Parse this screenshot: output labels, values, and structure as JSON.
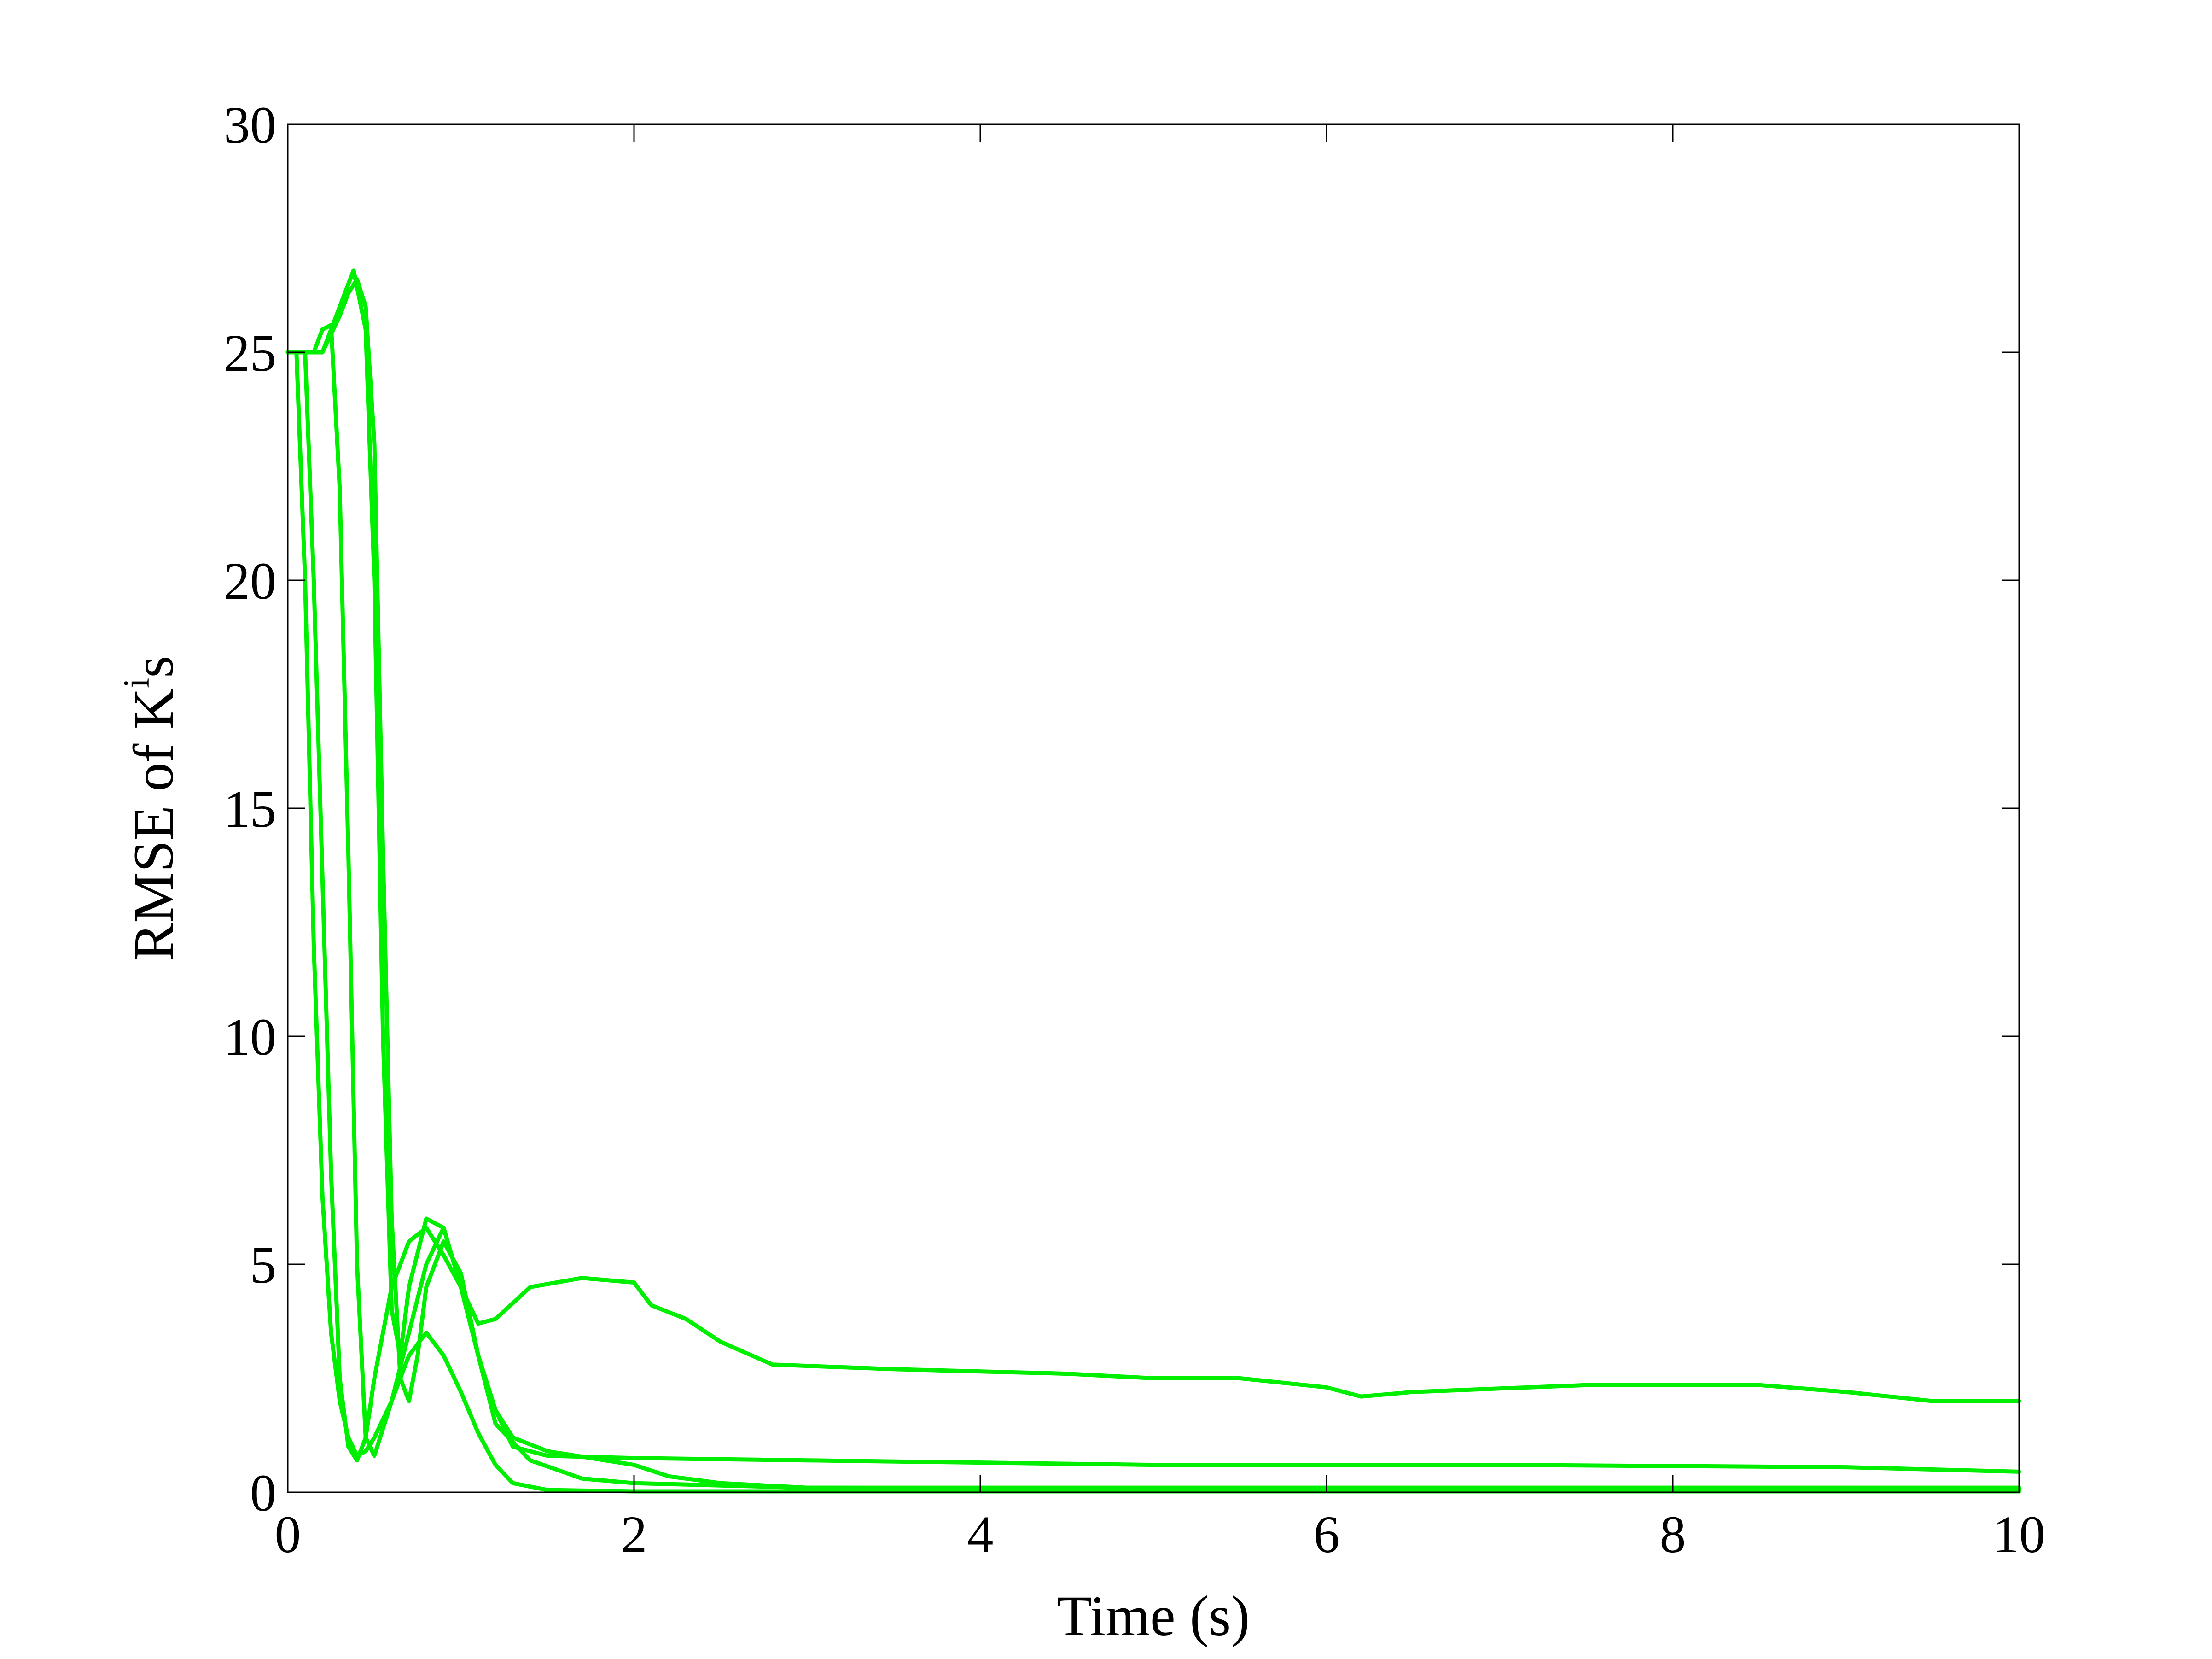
{
  "chart_data": {
    "type": "line",
    "title": "",
    "xlabel": "Time (s)",
    "ylabel": "RMSE of K",
    "ylabel_superscript": "i",
    "ylabel_suffix": "s",
    "xlim": [
      0,
      10
    ],
    "ylim": [
      0,
      30
    ],
    "xticks": [
      "0",
      "2",
      "4",
      "6",
      "8",
      "10"
    ],
    "yticks": [
      "0",
      "5",
      "10",
      "15",
      "20",
      "25",
      "30"
    ],
    "grid": false,
    "legend": "none",
    "color": "#00ee00",
    "series": [
      {
        "x": [
          0,
          0.1,
          0.15,
          0.25,
          0.3,
          0.35,
          0.4,
          0.45,
          0.5,
          0.55,
          0.6,
          0.7,
          0.8,
          0.9,
          1.0,
          1.1,
          1.2,
          1.4,
          1.7,
          2.0,
          2.1,
          2.3,
          2.5,
          2.8,
          3.5,
          4.5,
          5.0,
          5.5,
          6.0,
          6.2,
          6.5,
          7.5,
          8.5,
          9.0,
          9.5,
          10.0
        ],
        "y": [
          25,
          25,
          20,
          7,
          2.5,
          1.0,
          0.7,
          1.2,
          2.5,
          3.5,
          4.5,
          5.5,
          5.8,
          5.2,
          4.5,
          3.7,
          3.8,
          4.5,
          4.7,
          4.6,
          4.1,
          3.8,
          3.3,
          2.8,
          2.7,
          2.6,
          2.5,
          2.5,
          2.3,
          2.1,
          2.2,
          2.35,
          2.35,
          2.2,
          2.0,
          2.0
        ]
      },
      {
        "x": [
          0,
          0.15,
          0.2,
          0.25,
          0.3,
          0.35,
          0.4,
          0.45,
          0.5,
          0.6,
          0.7,
          0.8,
          0.9,
          1.0,
          1.1,
          1.2,
          1.3,
          1.5,
          2.0,
          3.0,
          5.0,
          7.0,
          9.0,
          10.0
        ],
        "y": [
          25,
          25,
          25.5,
          25.6,
          22,
          14,
          5,
          1.2,
          0.8,
          2.0,
          3.5,
          5.0,
          5.8,
          4.5,
          3.0,
          1.8,
          1.0,
          0.8,
          0.75,
          0.7,
          0.6,
          0.6,
          0.55,
          0.45
        ]
      },
      {
        "x": [
          0,
          0.2,
          0.3,
          0.35,
          0.38,
          0.45,
          0.5,
          0.55,
          0.6,
          0.65,
          0.7,
          0.8,
          0.9,
          1.0,
          1.1,
          1.2,
          1.3,
          1.5,
          2.0,
          2.2,
          2.5,
          3.0,
          5.0,
          7.0,
          10.0
        ],
        "y": [
          25,
          25,
          26.0,
          26.5,
          26.8,
          25.5,
          20,
          10,
          4,
          3.0,
          4.5,
          6.0,
          5.8,
          4.5,
          3.0,
          1.8,
          1.2,
          0.9,
          0.6,
          0.35,
          0.2,
          0.1,
          0.1,
          0.1,
          0.1
        ]
      },
      {
        "x": [
          0,
          0.2,
          0.3,
          0.35,
          0.4,
          0.45,
          0.5,
          0.55,
          0.6,
          0.65,
          0.7,
          0.75,
          0.8,
          0.9,
          1.0,
          1.1,
          1.2,
          1.4,
          1.7,
          2.0,
          2.5,
          3.0,
          5.0,
          10.0
        ],
        "y": [
          25,
          25,
          25.8,
          26.3,
          26.6,
          26.0,
          23,
          14,
          6,
          2.5,
          2.0,
          3.0,
          4.5,
          5.5,
          4.8,
          3.0,
          1.5,
          0.7,
          0.3,
          0.2,
          0.15,
          0.1,
          0.08,
          0.08
        ]
      },
      {
        "x": [
          0,
          0.05,
          0.1,
          0.15,
          0.2,
          0.25,
          0.3,
          0.35,
          0.4,
          0.45,
          0.5,
          0.6,
          0.7,
          0.8,
          0.9,
          1.0,
          1.1,
          1.2,
          1.3,
          1.5,
          2.0,
          3.0,
          5.0,
          10.0
        ],
        "y": [
          25,
          25,
          20,
          12,
          6.5,
          3.5,
          2.0,
          1.2,
          0.8,
          0.9,
          1.2,
          2.0,
          3.0,
          3.5,
          3.0,
          2.2,
          1.3,
          0.6,
          0.2,
          0.05,
          0.02,
          0.02,
          0.02,
          0.02
        ]
      }
    ]
  }
}
